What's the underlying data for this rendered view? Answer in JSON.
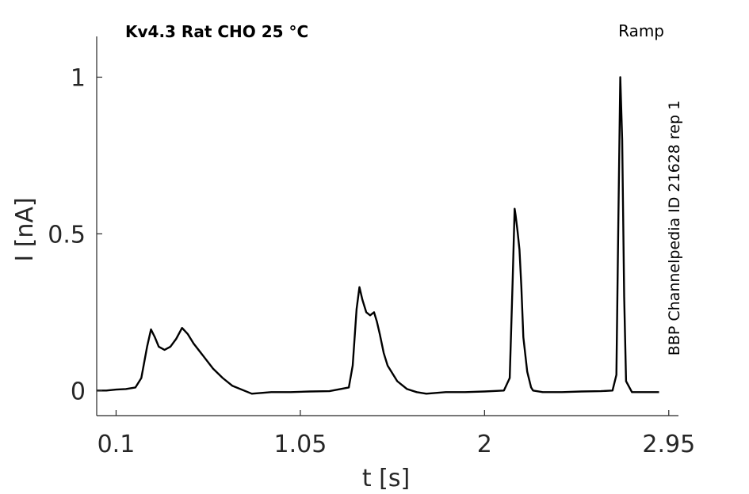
{
  "chart_data": {
    "type": "line",
    "title": "Kv4.3  Rat  CHO  25 °C",
    "protocol_label": "Ramp",
    "side_label": "BBP Channelpedia ID 21628 rep 1",
    "xlabel": "t [s]",
    "ylabel": "I [nA]",
    "xlim": [
      0.0,
      3.0
    ],
    "ylim": [
      -0.08,
      1.13
    ],
    "x_ticks": [
      0.1,
      1.05,
      2.0,
      2.95
    ],
    "x_tick_labels": [
      "0.1",
      "1.05",
      "2",
      "2.95"
    ],
    "y_ticks": [
      0,
      0.5,
      1
    ],
    "y_tick_labels": [
      "0",
      "0.5",
      "1"
    ],
    "grid": false,
    "line_color": "#000000",
    "series": [
      {
        "x": [
          0.0,
          0.05,
          0.1,
          0.15,
          0.2,
          0.23,
          0.26,
          0.28,
          0.3,
          0.32,
          0.35,
          0.38,
          0.41,
          0.44,
          0.47,
          0.5,
          0.55,
          0.6,
          0.65,
          0.7,
          0.8,
          0.9,
          1.0,
          1.1,
          1.2,
          1.3,
          1.32,
          1.34,
          1.355,
          1.37,
          1.39,
          1.41,
          1.43,
          1.445,
          1.46,
          1.48,
          1.5,
          1.55,
          1.6,
          1.65,
          1.7,
          1.8,
          1.9,
          2.0,
          2.1,
          2.13,
          2.145,
          2.155,
          2.16,
          2.17,
          2.18,
          2.19,
          2.2,
          2.22,
          2.24,
          2.25,
          2.3,
          2.4,
          2.5,
          2.6,
          2.66,
          2.68,
          2.69,
          2.7,
          2.71,
          2.72,
          2.73,
          2.76,
          2.8,
          2.9
        ],
        "y": [
          0.0,
          0.0,
          0.003,
          0.005,
          0.01,
          0.04,
          0.14,
          0.195,
          0.17,
          0.14,
          0.13,
          0.14,
          0.165,
          0.2,
          0.18,
          0.15,
          0.11,
          0.07,
          0.04,
          0.015,
          -0.01,
          -0.005,
          -0.005,
          -0.003,
          -0.002,
          0.01,
          0.08,
          0.26,
          0.33,
          0.29,
          0.25,
          0.24,
          0.25,
          0.22,
          0.18,
          0.12,
          0.08,
          0.03,
          0.005,
          -0.005,
          -0.01,
          -0.005,
          -0.005,
          -0.003,
          0.0,
          0.04,
          0.35,
          0.58,
          0.56,
          0.51,
          0.45,
          0.33,
          0.17,
          0.06,
          0.01,
          0.0,
          -0.005,
          -0.005,
          -0.003,
          -0.002,
          0.0,
          0.05,
          0.55,
          1.0,
          0.8,
          0.3,
          0.03,
          -0.005,
          -0.005,
          -0.005
        ]
      }
    ]
  }
}
